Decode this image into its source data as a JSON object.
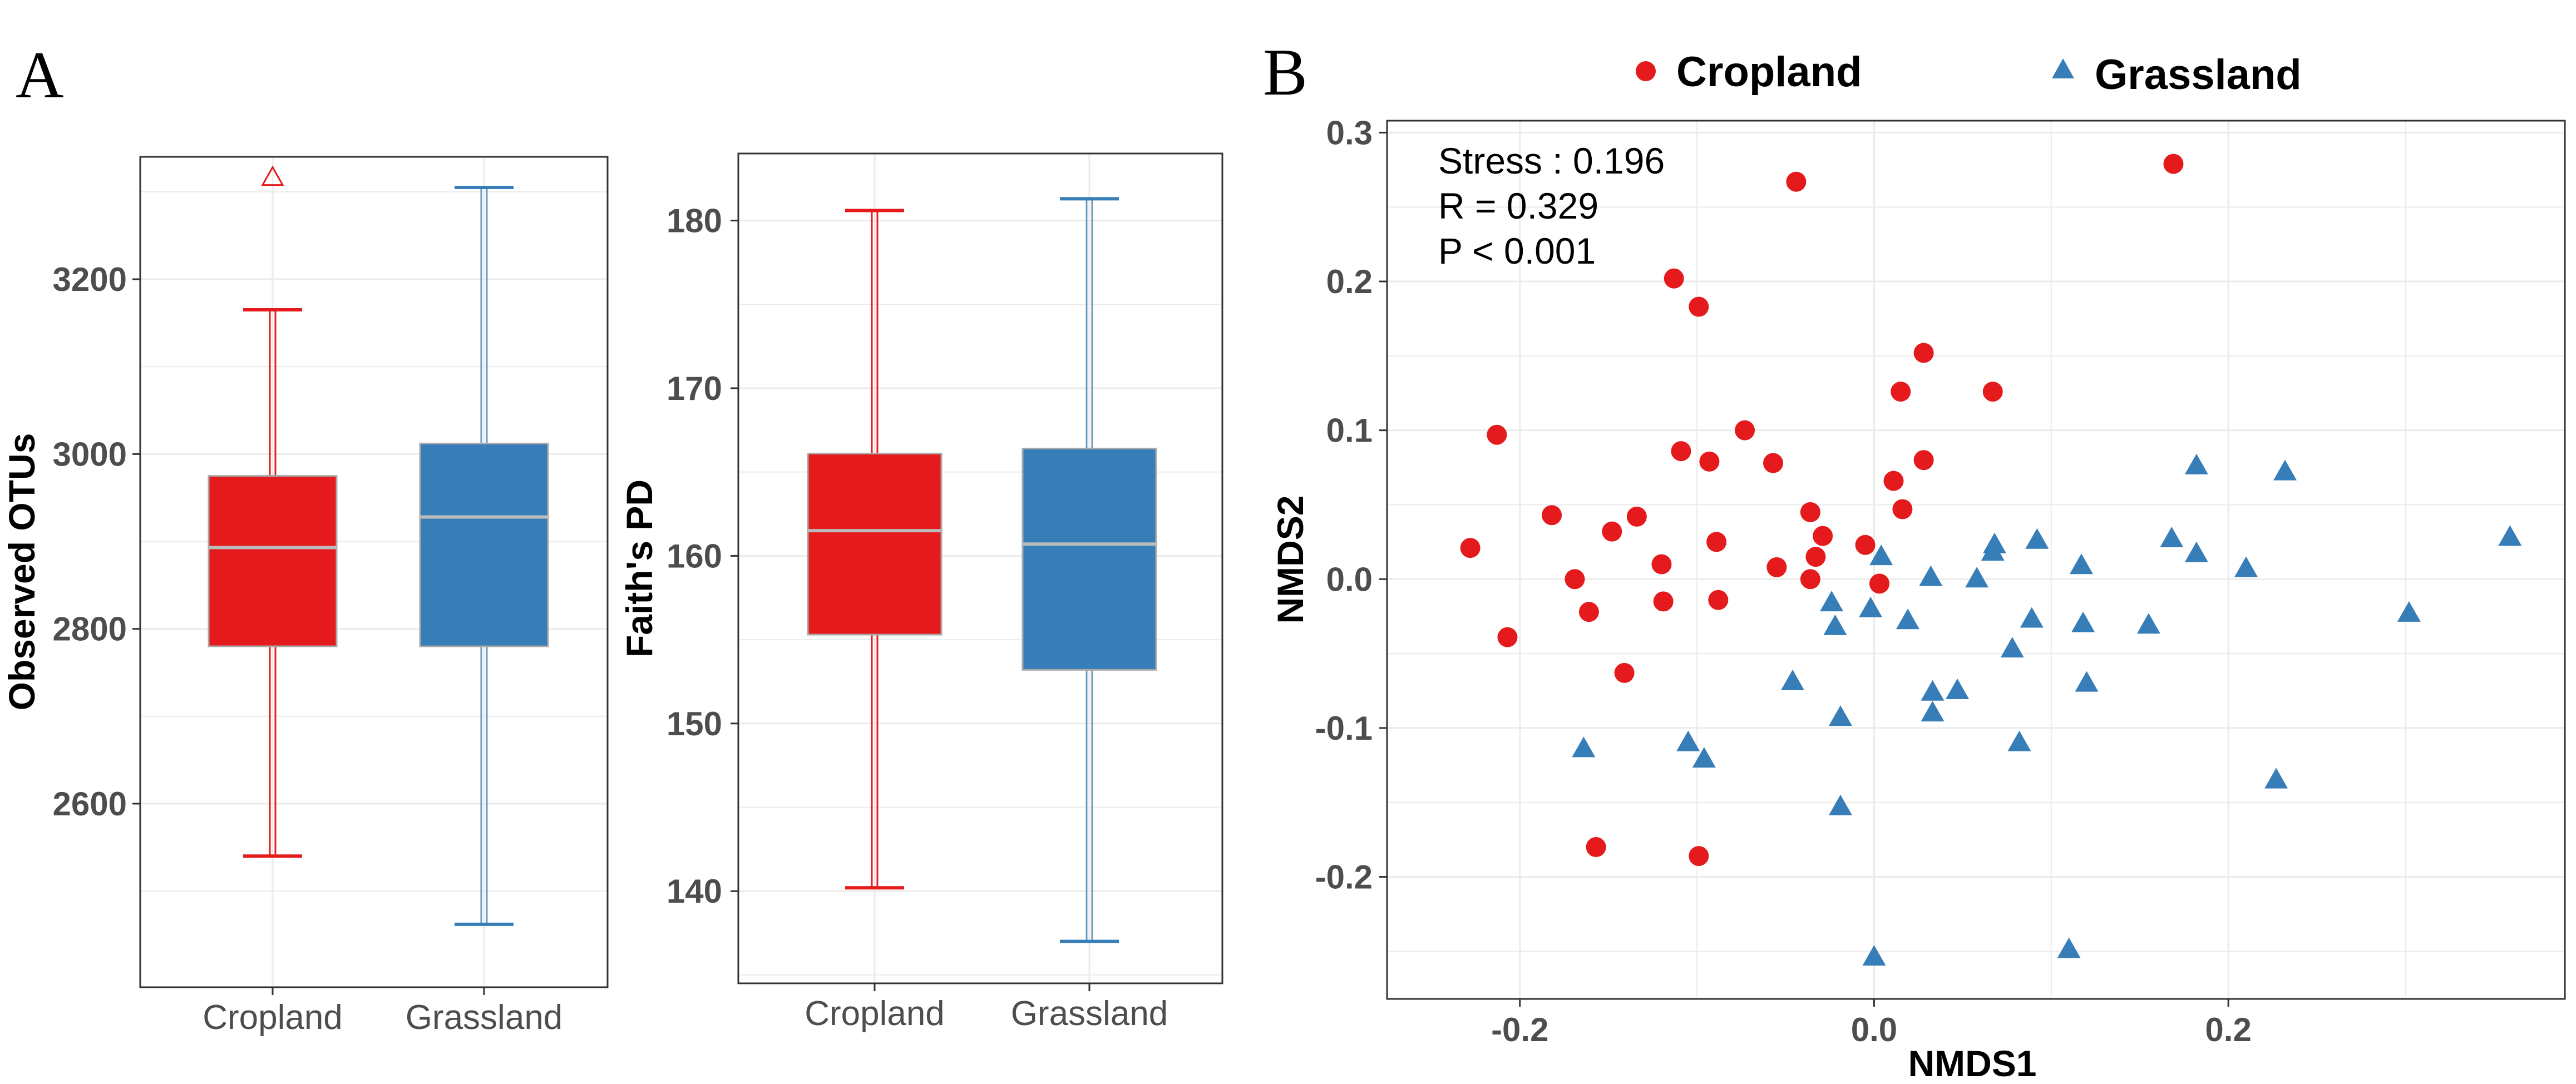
{
  "panels": {
    "a_label": "A",
    "b_label": "B"
  },
  "colors": {
    "cropland": "#E41A1C",
    "grassland": "#377EB8",
    "grassland_whisker": "#6A9BC0",
    "median": "#BBBBBB",
    "grid": "#EBEBEB",
    "frame": "#333333"
  },
  "legend": {
    "cropland_label": "Cropland",
    "grassland_label": "Grassland"
  },
  "stats": {
    "stress": "Stress : 0.196",
    "r": "R = 0.329",
    "p": "P < 0.001"
  },
  "chart_data": [
    {
      "type": "box",
      "id": "observed-otus",
      "categories": [
        "Cropland",
        "Grassland"
      ],
      "ylabel": "Observed OTUs",
      "ylim": [
        2390,
        3340
      ],
      "yticks": [
        2600,
        2800,
        3000,
        3200
      ],
      "boxes": [
        {
          "name": "Cropland",
          "whisker_low": 2540,
          "q1": 2780,
          "median": 2893,
          "q3": 2975,
          "whisker_high": 3165,
          "outliers": [
            3318
          ]
        },
        {
          "name": "Grassland",
          "whisker_low": 2462,
          "q1": 2780,
          "median": 2928,
          "q3": 3012,
          "whisker_high": 3305,
          "outliers": []
        }
      ]
    },
    {
      "type": "box",
      "id": "faiths-pd",
      "categories": [
        "Cropland",
        "Grassland"
      ],
      "ylabel": "Faith's PD",
      "ylim": [
        134.5,
        184
      ],
      "yticks": [
        140,
        150,
        160,
        170,
        180
      ],
      "boxes": [
        {
          "name": "Cropland",
          "whisker_low": 140.2,
          "q1": 155.3,
          "median": 161.5,
          "q3": 166.1,
          "whisker_high": 180.6,
          "outliers": []
        },
        {
          "name": "Grassland",
          "whisker_low": 137.0,
          "q1": 153.2,
          "median": 160.7,
          "q3": 166.4,
          "whisker_high": 181.3,
          "outliers": []
        }
      ]
    },
    {
      "type": "scatter",
      "id": "nmds",
      "xlabel": "NMDS1",
      "ylabel": "NMDS2",
      "xlim": [
        -0.275,
        0.39
      ],
      "ylim": [
        -0.282,
        0.308
      ],
      "xticks": [
        -0.2,
        0.0,
        0.2
      ],
      "xtick_labels": [
        "-0.2",
        "0.0",
        "0.2"
      ],
      "yticks": [
        -0.2,
        -0.1,
        0.0,
        0.1,
        0.2,
        0.3
      ],
      "ytick_labels": [
        "-0.2",
        "-0.1",
        "0.0",
        "0.1",
        "0.2",
        "0.3"
      ],
      "series": [
        {
          "name": "Cropland",
          "marker": "circle",
          "points": [
            [
              -0.044,
              0.267
            ],
            [
              0.169,
              0.279
            ],
            [
              -0.113,
              0.202
            ],
            [
              -0.099,
              0.183
            ],
            [
              0.028,
              0.152
            ],
            [
              0.015,
              0.126
            ],
            [
              0.067,
              0.126
            ],
            [
              -0.073,
              0.1
            ],
            [
              -0.213,
              0.097
            ],
            [
              -0.109,
              0.086
            ],
            [
              -0.093,
              0.079
            ],
            [
              -0.057,
              0.078
            ],
            [
              0.028,
              0.08
            ],
            [
              0.011,
              0.066
            ],
            [
              0.016,
              0.047
            ],
            [
              -0.182,
              0.043
            ],
            [
              -0.134,
              0.042
            ],
            [
              -0.036,
              0.045
            ],
            [
              -0.148,
              0.032
            ],
            [
              -0.029,
              0.029
            ],
            [
              -0.089,
              0.025
            ],
            [
              -0.005,
              0.023
            ],
            [
              -0.228,
              0.021
            ],
            [
              -0.033,
              0.015
            ],
            [
              -0.12,
              0.01
            ],
            [
              -0.055,
              0.008
            ],
            [
              -0.169,
              0.0
            ],
            [
              -0.036,
              0.0
            ],
            [
              0.003,
              -0.003
            ],
            [
              -0.119,
              -0.015
            ],
            [
              -0.088,
              -0.014
            ],
            [
              -0.161,
              -0.022
            ],
            [
              -0.207,
              -0.039
            ],
            [
              -0.141,
              -0.063
            ],
            [
              -0.157,
              -0.18
            ],
            [
              -0.099,
              -0.186
            ]
          ]
        },
        {
          "name": "Grassland",
          "marker": "triangle",
          "points": [
            [
              0.182,
              0.076
            ],
            [
              0.232,
              0.072
            ],
            [
              0.359,
              0.028
            ],
            [
              0.168,
              0.027
            ],
            [
              0.092,
              0.026
            ],
            [
              0.068,
              0.023
            ],
            [
              0.067,
              0.018
            ],
            [
              0.182,
              0.017
            ],
            [
              0.004,
              0.015
            ],
            [
              0.117,
              0.009
            ],
            [
              0.21,
              0.007
            ],
            [
              0.032,
              0.001
            ],
            [
              0.058,
              0.0
            ],
            [
              -0.024,
              -0.016
            ],
            [
              -0.002,
              -0.02
            ],
            [
              0.302,
              -0.023
            ],
            [
              0.089,
              -0.027
            ],
            [
              0.019,
              -0.028
            ],
            [
              0.118,
              -0.03
            ],
            [
              0.155,
              -0.031
            ],
            [
              -0.022,
              -0.032
            ],
            [
              0.078,
              -0.047
            ],
            [
              -0.046,
              -0.069
            ],
            [
              0.047,
              -0.075
            ],
            [
              0.033,
              -0.076
            ],
            [
              0.12,
              -0.07
            ],
            [
              0.033,
              -0.09
            ],
            [
              -0.019,
              -0.093
            ],
            [
              -0.105,
              -0.11
            ],
            [
              0.082,
              -0.11
            ],
            [
              -0.164,
              -0.114
            ],
            [
              -0.096,
              -0.121
            ],
            [
              0.227,
              -0.135
            ],
            [
              -0.019,
              -0.153
            ],
            [
              0.11,
              -0.249
            ],
            [
              0.0,
              -0.254
            ]
          ]
        }
      ]
    }
  ]
}
